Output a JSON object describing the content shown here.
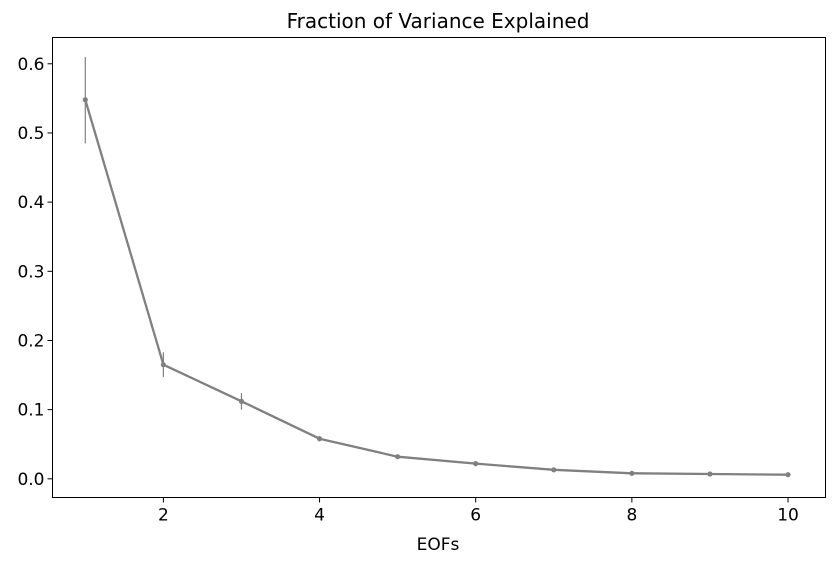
{
  "chart_data": {
    "type": "line",
    "title": "Fraction of Variance Explained",
    "xlabel": "EOFs",
    "ylabel": "",
    "x": [
      1,
      2,
      3,
      4,
      5,
      6,
      7,
      8,
      9,
      10
    ],
    "series": [
      {
        "values": [
          0.548,
          0.165,
          0.112,
          0.058,
          0.032,
          0.022,
          0.013,
          0.008,
          0.007,
          0.006
        ],
        "err_low": [
          0.485,
          0.147,
          0.1,
          0.054,
          0.031,
          0.021,
          0.0125,
          0.0075,
          0.0065,
          0.0055
        ],
        "err_high": [
          0.61,
          0.183,
          0.124,
          0.062,
          0.033,
          0.023,
          0.0135,
          0.0085,
          0.0075,
          0.0065
        ],
        "color": "#808080"
      }
    ],
    "xlim": [
      0.58,
      10.48
    ],
    "ylim": [
      -0.027,
      0.638
    ],
    "xticks": [
      "2",
      "4",
      "6",
      "8",
      "10"
    ],
    "yticks": [
      "0.0",
      "0.1",
      "0.2",
      "0.3",
      "0.4",
      "0.5",
      "0.6"
    ],
    "grid": false
  }
}
